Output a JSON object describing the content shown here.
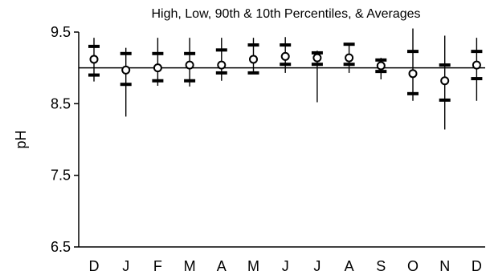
{
  "chart_data": {
    "type": "box",
    "title": "",
    "subtitle": "High, Low, 90th & 10th Percentiles, & Averages",
    "xlabel": "",
    "ylabel": "pH",
    "ylim": [
      6.5,
      9.5
    ],
    "yticks": [
      {
        "value": 9.5,
        "label": "9.5"
      },
      {
        "value": 8.5,
        "label": "8.5"
      },
      {
        "value": 7.5,
        "label": "7.5"
      },
      {
        "value": 6.5,
        "label": "6.5"
      }
    ],
    "reference_line": 9.0,
    "grid": false,
    "categories": [
      "D",
      "J",
      "F",
      "M",
      "A",
      "M",
      "J",
      "J",
      "A",
      "S",
      "O",
      "N",
      "D"
    ],
    "series": [
      {
        "stat": "high",
        "values": [
          9.42,
          9.28,
          9.42,
          9.42,
          9.42,
          9.42,
          9.43,
          9.24,
          9.34,
          9.14,
          9.55,
          9.45,
          9.42
        ]
      },
      {
        "stat": "p90",
        "values": [
          9.3,
          9.2,
          9.2,
          9.2,
          9.25,
          9.32,
          9.32,
          9.21,
          9.33,
          9.11,
          9.23,
          9.04,
          9.23
        ]
      },
      {
        "stat": "average",
        "values": [
          9.12,
          8.97,
          9.0,
          9.04,
          9.04,
          9.12,
          9.16,
          9.14,
          9.14,
          9.03,
          8.92,
          8.82,
          9.04
        ]
      },
      {
        "stat": "p10",
        "values": [
          8.9,
          8.77,
          8.82,
          8.82,
          8.93,
          8.93,
          9.05,
          9.05,
          9.05,
          8.95,
          8.64,
          8.55,
          8.85
        ]
      },
      {
        "stat": "low",
        "values": [
          8.81,
          8.32,
          8.75,
          8.74,
          8.82,
          8.93,
          8.93,
          8.52,
          8.93,
          8.84,
          8.54,
          8.14,
          8.54
        ]
      }
    ]
  }
}
